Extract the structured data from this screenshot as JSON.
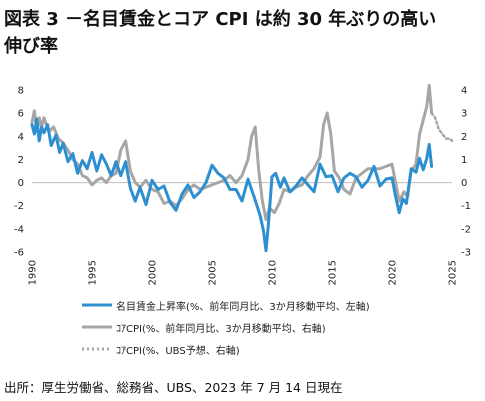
{
  "title_line1": "図表 3 －名目賃金とコア CPI は約 30 年ぶりの高い",
  "title_line2": "伸び率",
  "source": "出所：厚生労働省、総務省、UBS、2023 年 7 月 14 日現在",
  "colors": {
    "wage": "#2E8FD0",
    "cpi": "#A6A6A6",
    "forecast": "#A6A6A6"
  },
  "legend": [
    {
      "label": "名目賃金上昇率(%、前年同月比、3か月移動平均、左軸)",
      "color": "#2E8FD0",
      "style": "solid"
    },
    {
      "label": "ｺｱCPI(%、前年同月比、3か月移動平均、右軸)",
      "color": "#A6A6A6",
      "style": "solid"
    },
    {
      "label": "ｺｱCPI(%、UBS予想、右軸)",
      "color": "#A6A6A6",
      "style": "dotted"
    }
  ],
  "chart_data": {
    "type": "line",
    "title": "図表 3 －名目賃金とコア CPI は約 30 年ぶりの高い伸び率",
    "xlabel": "",
    "ylabel_left": "",
    "ylabel_right": "",
    "xlim": [
      1990,
      2025
    ],
    "ylim_left": [
      -6,
      8
    ],
    "ylim_right": [
      -3,
      4
    ],
    "x_ticks": [
      1990,
      1995,
      2000,
      2005,
      2010,
      2015,
      2020,
      2025
    ],
    "y_ticks_left": [
      -6,
      -4,
      -2,
      0,
      2,
      4,
      6,
      8
    ],
    "y_ticks_right": [
      -3,
      -2,
      -1,
      0,
      1,
      2,
      3,
      4
    ],
    "grid": false,
    "legend_position": "bottom",
    "series": [
      {
        "name": "名目賃金上昇率(%、前年同月比、3か月移動平均、左軸)",
        "axis": "left",
        "x": [
          1990.0,
          1990.2,
          1990.4,
          1990.6,
          1990.8,
          1991.0,
          1991.3,
          1991.6,
          1992.0,
          1992.3,
          1992.6,
          1993.0,
          1993.4,
          1993.8,
          1994.2,
          1994.6,
          1995.0,
          1995.4,
          1995.8,
          1996.2,
          1996.6,
          1997.0,
          1997.4,
          1997.8,
          1998.2,
          1998.6,
          1999.0,
          1999.5,
          2000.0,
          2000.5,
          2001.0,
          2001.5,
          2002.0,
          2002.5,
          2003.0,
          2003.5,
          2004.0,
          2004.5,
          2005.0,
          2005.5,
          2006.0,
          2006.5,
          2007.0,
          2007.5,
          2008.0,
          2008.5,
          2009.0,
          2009.3,
          2009.5,
          2009.7,
          2010.0,
          2010.3,
          2010.7,
          2011.0,
          2011.5,
          2012.0,
          2012.5,
          2013.0,
          2013.5,
          2014.0,
          2014.5,
          2015.0,
          2015.5,
          2016.0,
          2016.5,
          2017.0,
          2017.5,
          2018.0,
          2018.5,
          2019.0,
          2019.5,
          2020.0,
          2020.3,
          2020.6,
          2020.9,
          2021.2,
          2021.6,
          2022.0,
          2022.3,
          2022.6,
          2022.9,
          2023.1,
          2023.3
        ],
        "values": [
          5.0,
          4.2,
          5.5,
          3.6,
          4.8,
          4.3,
          5.0,
          3.2,
          4.1,
          2.6,
          3.4,
          1.8,
          2.5,
          0.8,
          1.9,
          1.2,
          2.6,
          1.0,
          2.4,
          1.6,
          0.6,
          1.8,
          0.6,
          1.8,
          -0.5,
          -1.6,
          -0.4,
          -1.9,
          0.2,
          -0.6,
          -0.3,
          -1.7,
          -2.4,
          -1.0,
          -0.2,
          -1.3,
          -0.8,
          0.0,
          1.5,
          0.8,
          0.4,
          -0.6,
          -0.6,
          -1.6,
          0.3,
          -1.2,
          -2.8,
          -4.2,
          -5.9,
          -3.6,
          0.5,
          0.8,
          -0.4,
          0.4,
          -0.8,
          -0.3,
          0.4,
          -0.2,
          -0.8,
          1.6,
          0.5,
          0.6,
          -0.8,
          0.4,
          0.8,
          0.5,
          -0.4,
          0.2,
          1.4,
          -0.3,
          0.3,
          0.4,
          -1.2,
          -2.6,
          -1.4,
          -1.8,
          1.2,
          0.9,
          2.1,
          1.1,
          2.1,
          3.3,
          1.4
        ]
      },
      {
        "name": "ｺｱCPI(%、前年同月比、3か月移動平均、右軸)",
        "axis": "right",
        "x": [
          1990.0,
          1990.2,
          1990.4,
          1990.6,
          1990.8,
          1991.0,
          1991.4,
          1991.8,
          1992.2,
          1992.6,
          1993.0,
          1993.4,
          1993.8,
          1994.2,
          1994.6,
          1995.0,
          1995.4,
          1995.8,
          1996.2,
          1996.6,
          1997.0,
          1997.4,
          1997.8,
          1998.2,
          1998.6,
          1999.0,
          1999.5,
          2000.0,
          2000.5,
          2001.0,
          2001.5,
          2002.0,
          2002.5,
          2003.0,
          2003.5,
          2004.0,
          2004.5,
          2005.0,
          2005.5,
          2006.0,
          2006.5,
          2007.0,
          2007.5,
          2008.0,
          2008.3,
          2008.6,
          2008.9,
          2009.2,
          2009.5,
          2009.8,
          2010.2,
          2010.6,
          2011.0,
          2011.5,
          2012.0,
          2012.5,
          2013.0,
          2013.5,
          2014.0,
          2014.3,
          2014.6,
          2014.9,
          2015.2,
          2015.6,
          2016.0,
          2016.5,
          2017.0,
          2017.5,
          2018.0,
          2018.5,
          2019.0,
          2019.5,
          2020.0,
          2020.3,
          2020.6,
          2021.0,
          2021.3,
          2021.6,
          2022.0,
          2022.3,
          2022.6,
          2022.9,
          2023.1,
          2023.3
        ],
        "values": [
          2.6,
          3.1,
          2.2,
          2.8,
          2.4,
          2.8,
          2.2,
          2.4,
          1.9,
          1.7,
          1.4,
          1.0,
          0.8,
          0.3,
          0.2,
          -0.1,
          0.1,
          0.2,
          0.0,
          0.3,
          0.4,
          1.4,
          1.8,
          0.5,
          0.0,
          -0.2,
          0.1,
          -0.3,
          -0.4,
          -0.9,
          -0.8,
          -1.0,
          -0.7,
          -0.3,
          -0.1,
          -0.3,
          -0.2,
          -0.1,
          0.0,
          0.1,
          0.3,
          0.0,
          0.3,
          1.0,
          2.0,
          2.4,
          0.5,
          -0.8,
          -1.6,
          -1.1,
          -1.3,
          -0.9,
          -0.3,
          -0.4,
          -0.2,
          -0.1,
          0.3,
          0.6,
          1.1,
          2.5,
          3.0,
          2.1,
          0.5,
          0.2,
          -0.3,
          -0.5,
          0.2,
          0.4,
          0.6,
          0.6,
          0.6,
          0.7,
          0.8,
          0.0,
          -0.8,
          -0.4,
          -0.6,
          0.5,
          0.8,
          2.1,
          2.7,
          3.3,
          4.2,
          3.0
        ]
      },
      {
        "name": "ｺｱCPI(%、UBS予想、右軸)",
        "axis": "right",
        "style": "dotted",
        "x": [
          2023.3,
          2023.6,
          2023.9,
          2024.2,
          2024.5,
          2024.8,
          2025.0
        ],
        "values": [
          3.0,
          2.8,
          2.3,
          2.1,
          1.9,
          1.9,
          1.8
        ]
      }
    ]
  }
}
